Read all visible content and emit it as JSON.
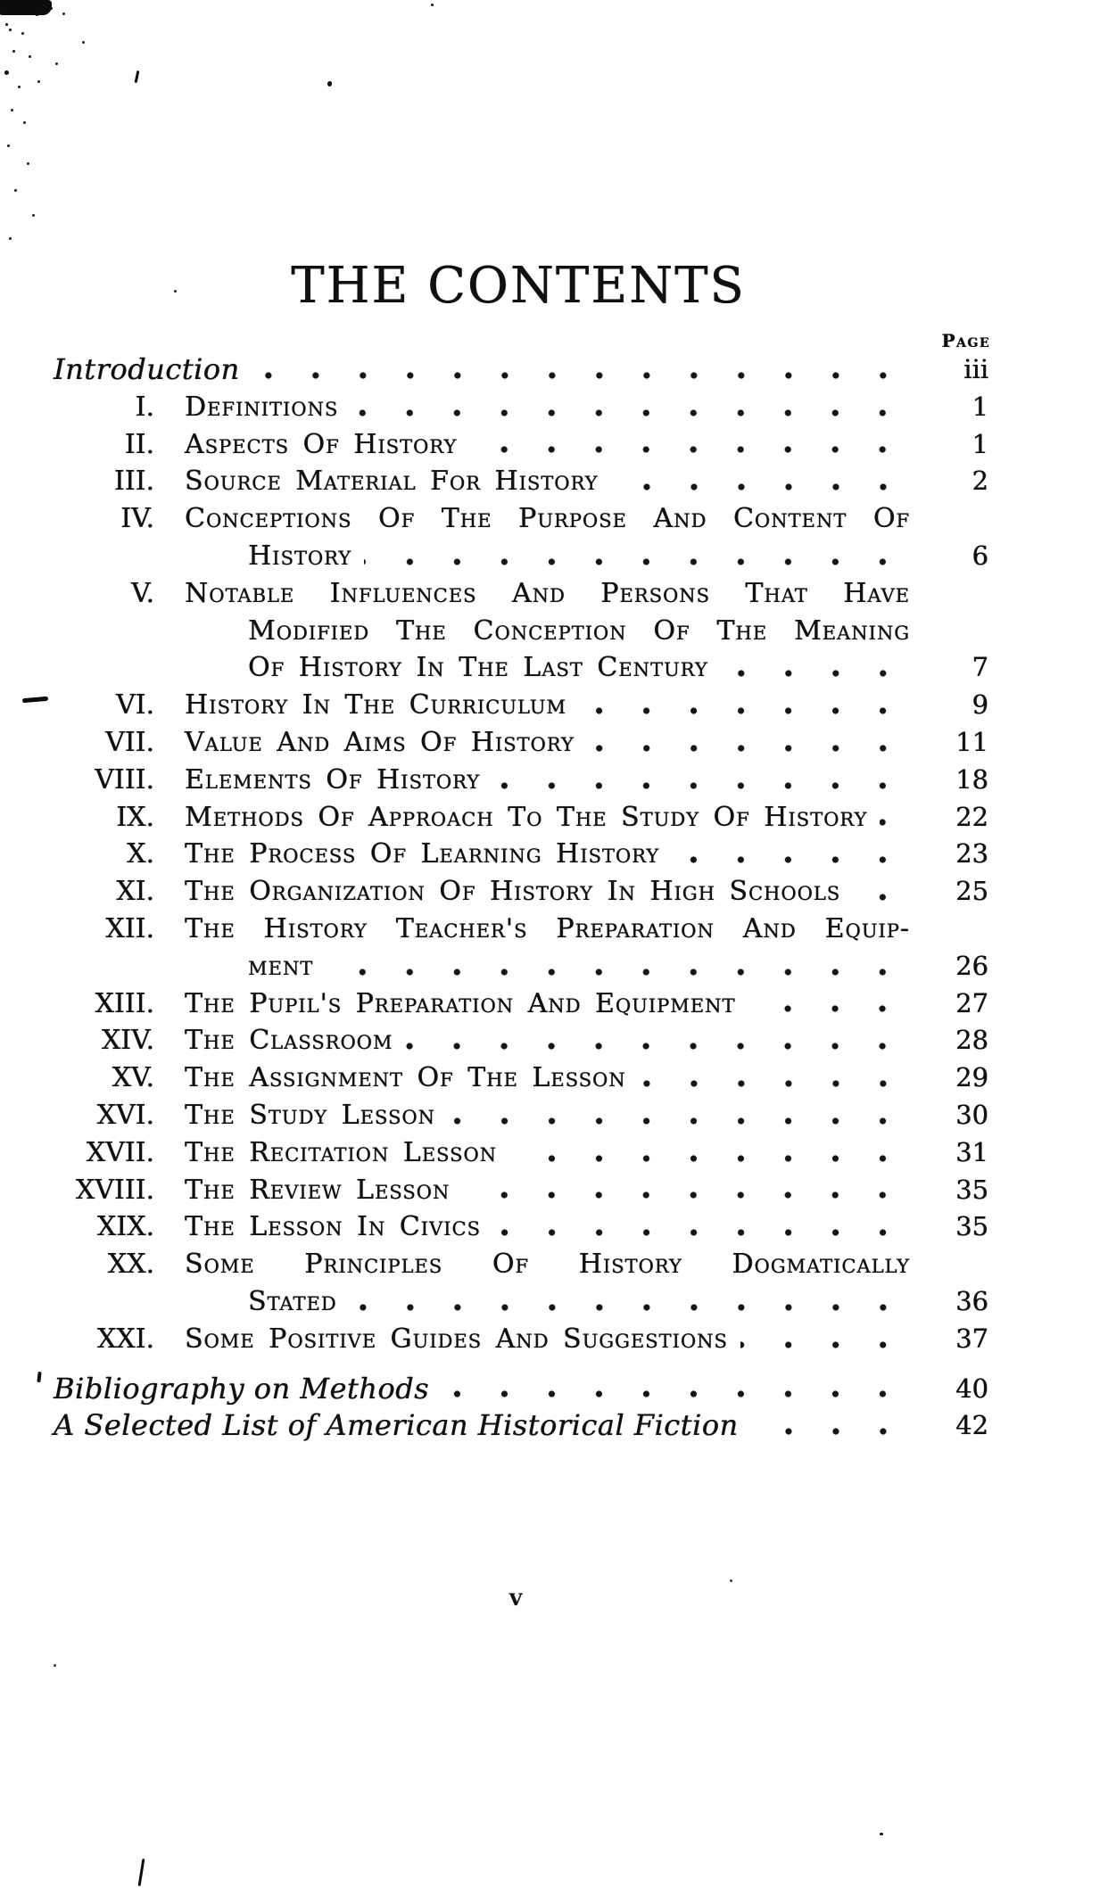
{
  "header": {
    "title": "THE CONTENTS"
  },
  "toc": {
    "page_label": "Page",
    "introduction": {
      "title": "Introduction",
      "page": "iii"
    },
    "chapters": [
      {
        "numeral": "I.",
        "line1": "Definitions",
        "page": "1"
      },
      {
        "numeral": "II.",
        "line1": "Aspects of History",
        "page": "1"
      },
      {
        "numeral": "III.",
        "line1": "Source Material for History",
        "page": "2"
      },
      {
        "numeral": "IV.",
        "line1": "Conceptions of the Purpose and Content of",
        "line2": "History",
        "page": "6"
      },
      {
        "numeral": "V.",
        "line1": "Notable Influences and Persons that have",
        "line2": "Modified the Conception of the Meaning",
        "line3": "of History in the Last Century",
        "page": "7"
      },
      {
        "numeral": "VI.",
        "line1": "History in the Curriculum",
        "page": "9"
      },
      {
        "numeral": "VII.",
        "line1": "Value and Aims of History",
        "page": "11"
      },
      {
        "numeral": "VIII.",
        "line1": "Elements of History",
        "page": "18"
      },
      {
        "numeral": "IX.",
        "line1": "Methods of Approach to the Study of History",
        "page": "22"
      },
      {
        "numeral": "X.",
        "line1": "The Process of Learning History",
        "page": "23"
      },
      {
        "numeral": "XI.",
        "line1": "The Organization of History in High Schools",
        "page": "25"
      },
      {
        "numeral": "XII.",
        "line1": "The History Teacher's Preparation and Equip-",
        "line2": "ment",
        "page": "26"
      },
      {
        "numeral": "XIII.",
        "line1": "The Pupil's Preparation and Equipment",
        "page": "27"
      },
      {
        "numeral": "XIV.",
        "line1": "The Classroom",
        "page": "28"
      },
      {
        "numeral": "XV.",
        "line1": "The Assignment of the Lesson",
        "page": "29"
      },
      {
        "numeral": "XVI.",
        "line1": "The Study Lesson",
        "page": "30"
      },
      {
        "numeral": "XVII.",
        "line1": "The Recitation Lesson",
        "page": "31"
      },
      {
        "numeral": "XVIII.",
        "line1": "The Review Lesson",
        "page": "35"
      },
      {
        "numeral": "XIX.",
        "line1": "The Lesson in Civics",
        "page": "35"
      },
      {
        "numeral": "XX.",
        "line1": "Some Principles of History Dogmatically",
        "line2": "Stated",
        "page": "36"
      },
      {
        "numeral": "XXI.",
        "line1": "Some Positive Guides and Suggestions",
        "page": "37"
      }
    ],
    "back_matter": [
      {
        "title": "Bibliography on Methods",
        "page": "40"
      },
      {
        "title": "A Selected List of American Historical Fiction",
        "page": "42"
      }
    ]
  },
  "footer": {
    "folio": "v"
  },
  "colors": {
    "ink": "#101010",
    "paper": "#ffffff"
  }
}
